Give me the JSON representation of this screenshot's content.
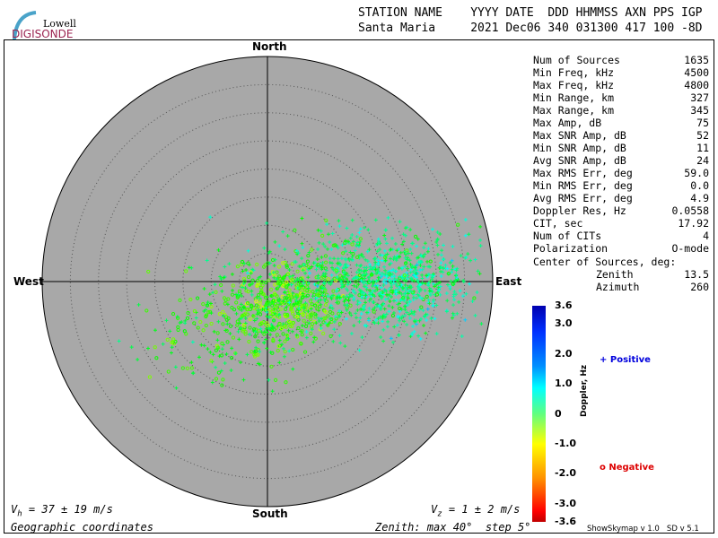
{
  "logo": {
    "line1": "Lowell",
    "line2": "DIGISONDE"
  },
  "header": {
    "labels": "STATION NAME    YYYY DATE  DDD HHMMSS AXN PPS IGP",
    "values": "Santa Maria     2021 Dec06 340 031300 417 100 -8D"
  },
  "directions": {
    "north": "North",
    "south": "South",
    "east": "East",
    "west": "West"
  },
  "stats": [
    {
      "label": "Num of Sources",
      "value": "1635"
    },
    {
      "label": "Min Freq, kHz",
      "value": "4500"
    },
    {
      "label": "Max Freq, kHz",
      "value": "4800"
    },
    {
      "label": "Min Range, km",
      "value": "327"
    },
    {
      "label": "Max Range, km",
      "value": "345"
    },
    {
      "label": "Max Amp, dB",
      "value": "75"
    },
    {
      "label": "Max SNR Amp, dB",
      "value": "52"
    },
    {
      "label": "Min SNR Amp, dB",
      "value": "11"
    },
    {
      "label": "Avg SNR Amp, dB",
      "value": "24"
    },
    {
      "label": "Max RMS Err, deg",
      "value": "59.0"
    },
    {
      "label": "Min RMS Err, deg",
      "value": "0.0"
    },
    {
      "label": "Avg RMS Err, deg",
      "value": "4.9"
    },
    {
      "label": "Doppler Res, Hz",
      "value": "0.0558"
    },
    {
      "label": "CIT, sec",
      "value": "17.92"
    },
    {
      "label": "Num of CITs",
      "value": "4"
    },
    {
      "label": "Polarization",
      "value": "O-mode"
    }
  ],
  "center": {
    "title": "Center of Sources, deg:",
    "zenith_label": "Zenith",
    "zenith": "13.5",
    "azimuth_label": "Azimuth",
    "azimuth": "260"
  },
  "colorbar": {
    "label": "Doppler, Hz",
    "ticks": [
      "3.6",
      "3.0",
      "2.0",
      "1.0",
      "0",
      "-1.0",
      "-2.0",
      "-3.0",
      "-3.6"
    ],
    "range": [
      -3.6,
      3.6
    ]
  },
  "legend": {
    "positive": "Positive",
    "negative": "Negative",
    "positive_color": "#0000dd",
    "negative_color": "#dd0000"
  },
  "footer": {
    "vh": "37 ± 19 m/s",
    "vz": "1 ± 2 m/s",
    "coords": "Geographic coordinates",
    "zenith": "Zenith: max 40°  step 5°",
    "version": "ShowSkymap v 1.0   SD v 5.1"
  },
  "chart_data": {
    "type": "scatter",
    "title": "",
    "polar": true,
    "zenith_max_deg": 40,
    "zenith_step_deg": 5,
    "num_sources": 1635,
    "center_zenith_deg": 13.5,
    "center_azimuth_deg": 260,
    "color_by": "Doppler, Hz",
    "color_range": [
      -3.6,
      3.6
    ]
  }
}
